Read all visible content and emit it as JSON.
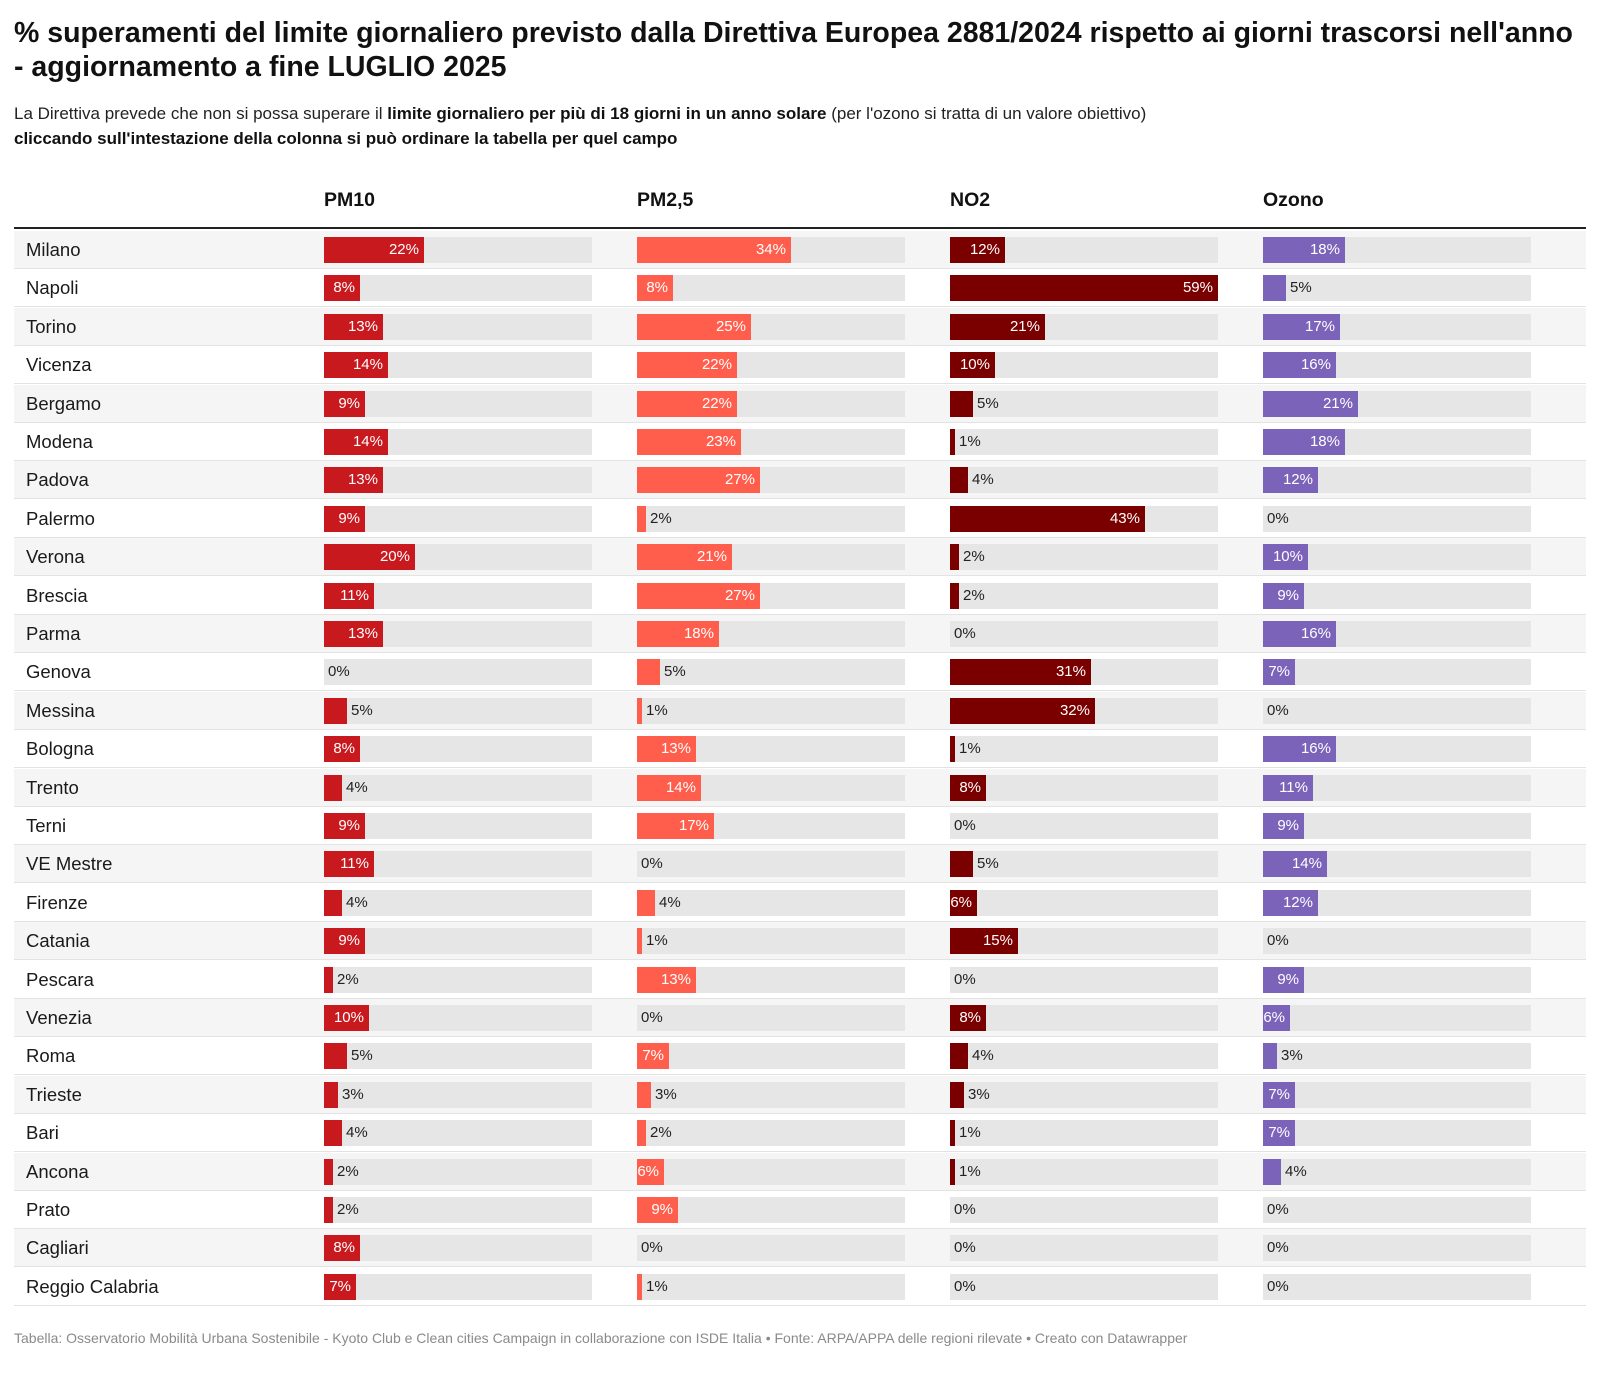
{
  "title": "% superamenti del limite giornaliero previsto dalla Direttiva Europea 2881/2024 rispetto ai giorni trascorsi nell'anno - aggiornamento a fine LUGLIO 2025",
  "subtitle": {
    "part1": "La Direttiva prevede che non si possa superare il ",
    "part1_bold": "limite giornaliero per più di 18 giorni in un anno solare",
    "part1_end": " (per l'ozono si tratta di un valore obiettivo)",
    "line2": "cliccando sull'intestazione della colonna si può ordinare la tabella per quel campo"
  },
  "footer": "Tabella: Osservatorio Mobilità Urbana Sostenibile - Kyoto Club e Clean cities Campaign in collaborazione con ISDE Italia • Fonte: ARPA/APPA delle regioni rilevate • Creato con Datawrapper",
  "chart_data": {
    "type": "table",
    "value_unit": "%",
    "bar_max": 59,
    "columns": [
      {
        "name": "PM10",
        "color": "#c8191f"
      },
      {
        "name": "PM2,5",
        "color": "#ff5e4d"
      },
      {
        "name": "NO2",
        "color": "#7a0000"
      },
      {
        "name": "Ozono",
        "color": "#7b63ba"
      }
    ],
    "rows": [
      {
        "city": "Milano",
        "values": [
          22,
          34,
          12,
          18
        ]
      },
      {
        "city": "Napoli",
        "values": [
          8,
          8,
          59,
          5
        ]
      },
      {
        "city": "Torino",
        "values": [
          13,
          25,
          21,
          17
        ]
      },
      {
        "city": "Vicenza",
        "values": [
          14,
          22,
          10,
          16
        ]
      },
      {
        "city": "Bergamo",
        "values": [
          9,
          22,
          5,
          21
        ]
      },
      {
        "city": "Modena",
        "values": [
          14,
          23,
          1,
          18
        ]
      },
      {
        "city": "Padova",
        "values": [
          13,
          27,
          4,
          12
        ]
      },
      {
        "city": "Palermo",
        "values": [
          9,
          2,
          43,
          0
        ]
      },
      {
        "city": "Verona",
        "values": [
          20,
          21,
          2,
          10
        ]
      },
      {
        "city": "Brescia",
        "values": [
          11,
          27,
          2,
          9
        ]
      },
      {
        "city": "Parma",
        "values": [
          13,
          18,
          0,
          16
        ]
      },
      {
        "city": "Genova",
        "values": [
          0,
          5,
          31,
          7
        ]
      },
      {
        "city": "Messina",
        "values": [
          5,
          1,
          32,
          0
        ]
      },
      {
        "city": "Bologna",
        "values": [
          8,
          13,
          1,
          16
        ]
      },
      {
        "city": "Trento",
        "values": [
          4,
          14,
          8,
          11
        ]
      },
      {
        "city": "Terni",
        "values": [
          9,
          17,
          0,
          9
        ]
      },
      {
        "city": "VE Mestre",
        "values": [
          11,
          0,
          5,
          14
        ]
      },
      {
        "city": "Firenze",
        "values": [
          4,
          4,
          6,
          12
        ]
      },
      {
        "city": "Catania",
        "values": [
          9,
          1,
          15,
          0
        ]
      },
      {
        "city": "Pescara",
        "values": [
          2,
          13,
          0,
          9
        ]
      },
      {
        "city": "Venezia",
        "values": [
          10,
          0,
          8,
          6
        ]
      },
      {
        "city": "Roma",
        "values": [
          5,
          7,
          4,
          3
        ]
      },
      {
        "city": "Trieste",
        "values": [
          3,
          3,
          3,
          7
        ]
      },
      {
        "city": "Bari",
        "values": [
          4,
          2,
          1,
          7
        ]
      },
      {
        "city": "Ancona",
        "values": [
          2,
          6,
          1,
          4
        ]
      },
      {
        "city": "Prato",
        "values": [
          2,
          9,
          0,
          0
        ]
      },
      {
        "city": "Cagliari",
        "values": [
          8,
          0,
          0,
          0
        ]
      },
      {
        "city": "Reggio Calabria",
        "values": [
          7,
          1,
          0,
          0
        ]
      }
    ]
  }
}
